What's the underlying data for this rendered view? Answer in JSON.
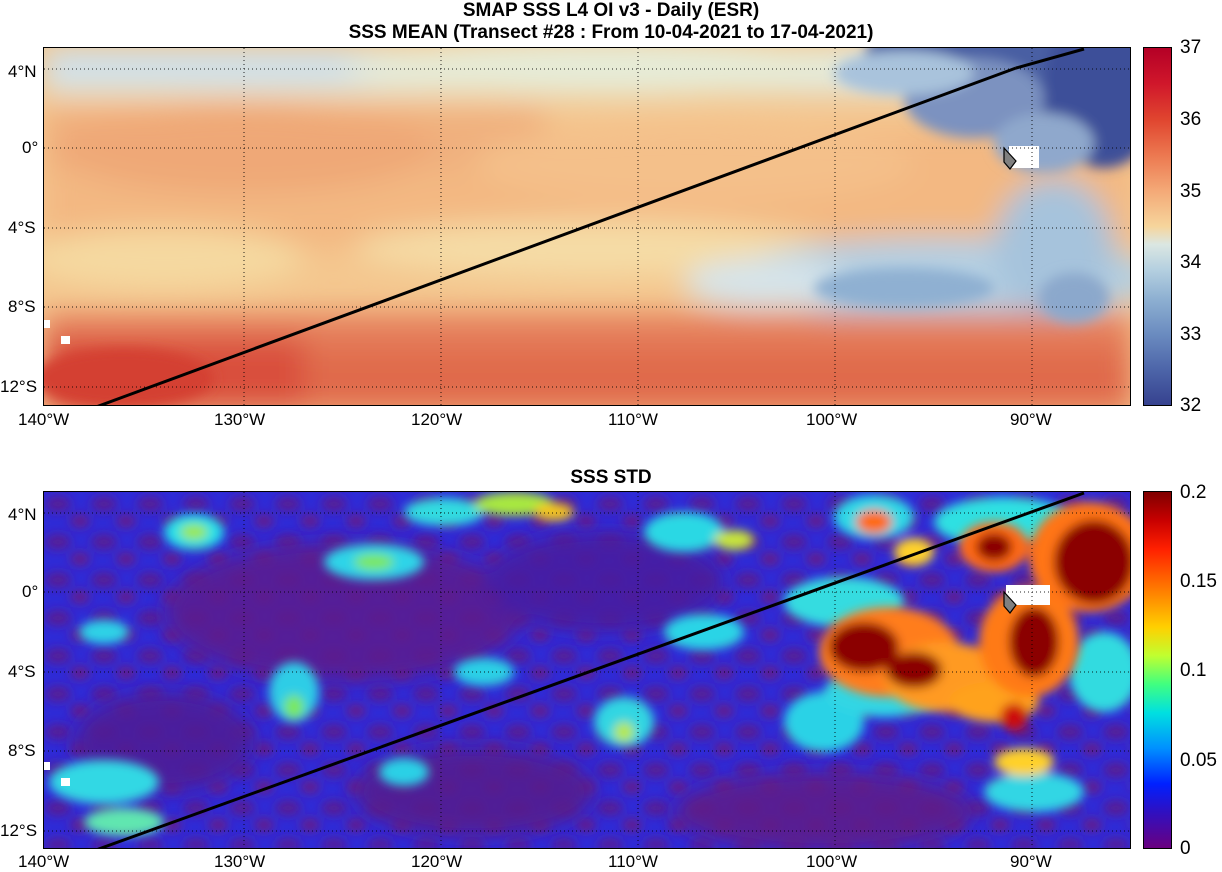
{
  "figure": {
    "title_line1": "SMAP SSS L4 OI v3 - Daily (ESR)",
    "title_line2": "SSS MEAN (Transect #28 : From 10-04-2021 to 17-04-2021)",
    "std_title": "SSS STD"
  },
  "axes": {
    "lon_labels": [
      "140°W",
      "130°W",
      "120°W",
      "110°W",
      "100°W",
      "90°W"
    ],
    "lat_labels": [
      "4°N",
      "0°",
      "4°S",
      "8°S",
      "12°S"
    ]
  },
  "mean_panel": {
    "colorbar_ticks": [
      "37",
      "36",
      "35",
      "34",
      "33",
      "32"
    ],
    "colormap": "blue-white-red (salinity)",
    "range": [
      32,
      37
    ]
  },
  "std_panel": {
    "colorbar_ticks": [
      "0.2",
      "0.15",
      "0.1",
      "0.05",
      "0"
    ],
    "colormap": "jet",
    "range": [
      0,
      0.2
    ]
  },
  "transect": {
    "start": "12.9°S 137.5°W",
    "end": "5°N 87.5°W",
    "color": "#000000"
  },
  "colors": {
    "ocean_salty": "#d9533f",
    "ocean_fresh": "#3a4f9a",
    "std_low": "#5a1a8c",
    "std_high": "#8b0000"
  }
}
